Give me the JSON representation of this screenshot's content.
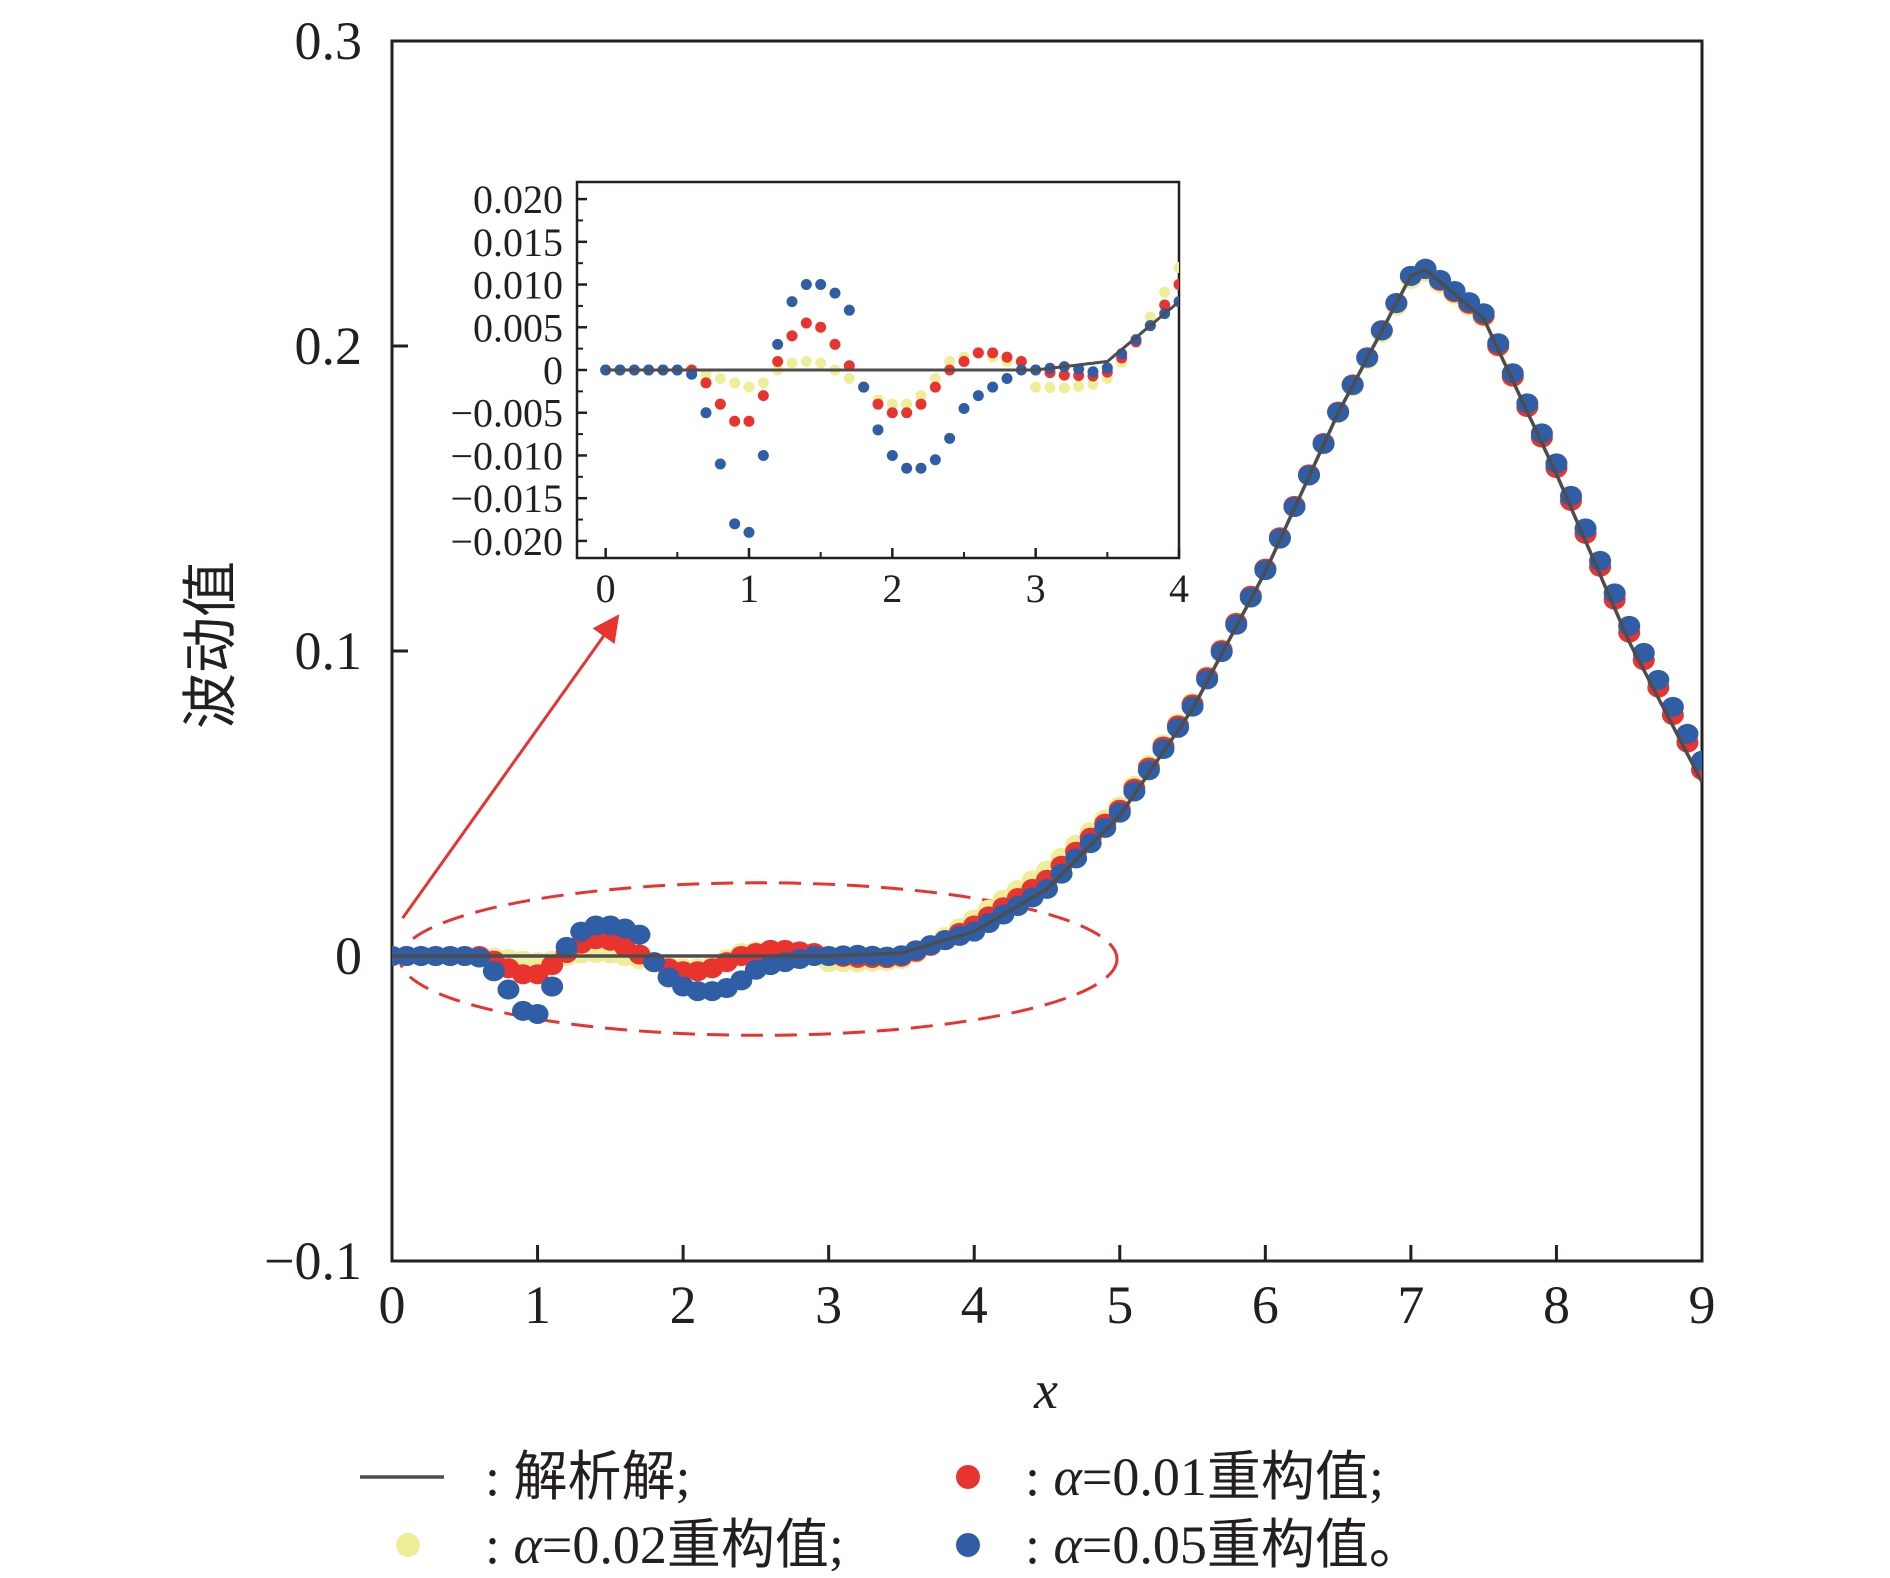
{
  "colors": {
    "analytic": "#4d4d4d",
    "alpha_001": "#e8332f",
    "alpha_002": "#eeee99",
    "alpha_005": "#2f5ea7",
    "annotation": "#e8332f",
    "axis": "#231f20"
  },
  "chart_data": [
    {
      "type": "scatter",
      "role": "main",
      "xlabel": "x",
      "ylabel": "波动值",
      "xlim": [
        0,
        9
      ],
      "ylim": [
        -0.1,
        0.3
      ],
      "x_ticks": [
        "0",
        "1",
        "2",
        "3",
        "4",
        "5",
        "6",
        "7",
        "8",
        "9"
      ],
      "y_ticks": [
        "−0.1",
        "0",
        "0.1",
        "0.2",
        "0.3"
      ],
      "grid": false,
      "legend_position": "bottom",
      "analytic_anchors": [
        [
          0,
          0
        ],
        [
          1,
          0
        ],
        [
          2,
          0
        ],
        [
          3,
          0
        ],
        [
          3.5,
          0.001
        ],
        [
          4.0,
          0.008
        ],
        [
          4.5,
          0.022
        ],
        [
          5.0,
          0.046
        ],
        [
          5.5,
          0.081
        ],
        [
          6.0,
          0.126
        ],
        [
          6.5,
          0.178
        ],
        [
          7.0,
          0.223
        ],
        [
          7.1,
          0.225
        ],
        [
          7.5,
          0.209
        ],
        [
          8.0,
          0.158
        ],
        [
          8.5,
          0.103
        ],
        [
          9.0,
          0.057
        ]
      ],
      "series": [
        {
          "name": "解析解",
          "kind": "line",
          "color_key": "analytic",
          "x": [
            0,
            9
          ],
          "sample_step": 0.1
        },
        {
          "name": "α=0.01重构值",
          "kind": "points",
          "color_key": "alpha_001",
          "x_start": 0,
          "x_end": 9,
          "x_step": 0.1,
          "deviation_from_analytic": [
            [
              0,
              0
            ],
            [
              0.6,
              0
            ],
            [
              0.7,
              -0.0015
            ],
            [
              0.8,
              -0.004
            ],
            [
              0.9,
              -0.006
            ],
            [
              1.0,
              -0.006
            ],
            [
              1.1,
              -0.003
            ],
            [
              1.2,
              0.001
            ],
            [
              1.3,
              0.004
            ],
            [
              1.4,
              0.0055
            ],
            [
              1.5,
              0.005
            ],
            [
              1.6,
              0.003
            ],
            [
              1.7,
              0.0005
            ],
            [
              1.8,
              -0.002
            ],
            [
              1.9,
              -0.004
            ],
            [
              2.0,
              -0.005
            ],
            [
              2.1,
              -0.005
            ],
            [
              2.2,
              -0.004
            ],
            [
              2.3,
              -0.002
            ],
            [
              2.4,
              0
            ],
            [
              2.5,
              0.001
            ],
            [
              2.6,
              0.002
            ],
            [
              2.7,
              0.002
            ],
            [
              2.8,
              0.0015
            ],
            [
              2.9,
              0.001
            ],
            [
              3.0,
              0
            ],
            [
              3.2,
              -0.001
            ],
            [
              3.4,
              -0.0015
            ],
            [
              3.6,
              -0.001
            ],
            [
              3.8,
              0
            ],
            [
              4.0,
              0.002
            ],
            [
              4.5,
              0.003
            ],
            [
              5.0,
              0.002
            ],
            [
              6.0,
              0.001
            ],
            [
              7.0,
              0
            ],
            [
              8.0,
              0.002
            ],
            [
              9.0,
              0.004
            ]
          ]
        },
        {
          "name": "α=0.02重构值",
          "kind": "points",
          "color_key": "alpha_002",
          "x_start": 0,
          "x_end": 9,
          "x_step": 0.1,
          "deviation_from_analytic": [
            [
              0,
              0
            ],
            [
              0.6,
              0
            ],
            [
              0.7,
              -0.0005
            ],
            [
              0.8,
              -0.001
            ],
            [
              0.9,
              -0.0015
            ],
            [
              1.0,
              -0.002
            ],
            [
              1.1,
              -0.0015
            ],
            [
              1.2,
              0
            ],
            [
              1.3,
              0.0008
            ],
            [
              1.4,
              0.001
            ],
            [
              1.5,
              0.0008
            ],
            [
              1.6,
              0
            ],
            [
              1.7,
              -0.001
            ],
            [
              1.8,
              -0.002
            ],
            [
              1.9,
              -0.0035
            ],
            [
              2.0,
              -0.004
            ],
            [
              2.1,
              -0.004
            ],
            [
              2.2,
              -0.003
            ],
            [
              2.3,
              -0.001
            ],
            [
              2.4,
              0.001
            ],
            [
              2.5,
              0.0015
            ],
            [
              2.6,
              0.002
            ],
            [
              2.7,
              0.0015
            ],
            [
              2.8,
              0.001
            ],
            [
              2.9,
              0
            ],
            [
              3.0,
              -0.002
            ],
            [
              3.2,
              -0.0025
            ],
            [
              3.4,
              -0.0025
            ],
            [
              3.6,
              -0.0015
            ],
            [
              3.8,
              0.001
            ],
            [
              4.0,
              0.004
            ],
            [
              4.5,
              0.006
            ],
            [
              5.0,
              0.003
            ],
            [
              6.0,
              0.001
            ],
            [
              7.0,
              -0.001
            ],
            [
              8.0,
              0.002
            ],
            [
              9.0,
              0.006
            ]
          ]
        },
        {
          "name": "α=0.05重构值",
          "kind": "points",
          "color_key": "alpha_005",
          "x_start": 0,
          "x_end": 9,
          "x_step": 0.1,
          "deviation_from_analytic": [
            [
              0,
              0
            ],
            [
              0.5,
              0
            ],
            [
              0.6,
              -0.0005
            ],
            [
              0.7,
              -0.005
            ],
            [
              0.8,
              -0.011
            ],
            [
              0.9,
              -0.018
            ],
            [
              1.0,
              -0.019
            ],
            [
              1.1,
              -0.01
            ],
            [
              1.2,
              0.003
            ],
            [
              1.3,
              0.008
            ],
            [
              1.4,
              0.01
            ],
            [
              1.5,
              0.01
            ],
            [
              1.6,
              0.009
            ],
            [
              1.7,
              0.007
            ],
            [
              1.8,
              -0.002
            ],
            [
              1.9,
              -0.007
            ],
            [
              2.0,
              -0.01
            ],
            [
              2.1,
              -0.0115
            ],
            [
              2.2,
              -0.0115
            ],
            [
              2.3,
              -0.0105
            ],
            [
              2.4,
              -0.008
            ],
            [
              2.5,
              -0.0045
            ],
            [
              2.6,
              -0.003
            ],
            [
              2.7,
              -0.002
            ],
            [
              2.8,
              -0.001
            ],
            [
              2.9,
              0
            ],
            [
              3.0,
              0
            ],
            [
              3.2,
              0
            ],
            [
              3.4,
              -0.001
            ],
            [
              3.6,
              -0.0005
            ],
            [
              3.8,
              0
            ],
            [
              4.0,
              0
            ],
            [
              4.5,
              0
            ],
            [
              5.0,
              0.001
            ],
            [
              7.0,
              0
            ],
            [
              9.0,
              0.007
            ]
          ]
        }
      ],
      "annotations": [
        {
          "type": "dashed-ellipse",
          "x_range": [
            0,
            4.5
          ],
          "y_range": [
            -0.026,
            0.024
          ]
        },
        {
          "type": "arrow",
          "from": [
            0.1,
            0.015
          ],
          "to": [
            2.1,
            0.112
          ]
        }
      ]
    },
    {
      "type": "scatter",
      "role": "inset",
      "xlim": [
        -0.2,
        4
      ],
      "ylim": [
        -0.022,
        0.022
      ],
      "x_ticks": [
        "0",
        "1",
        "2",
        "3",
        "4"
      ],
      "y_ticks": [
        "0.020",
        "0.015",
        "0.010",
        "0.005",
        "0",
        "−0.005",
        "−0.010",
        "−0.015",
        "−0.020"
      ],
      "x_range_shown": [
        0,
        4
      ],
      "grid": false
    }
  ],
  "legend": [
    {
      "marker": "line",
      "color_key": "analytic",
      "sep": ": ",
      "label": "解析解;",
      "italic_prefix": ""
    },
    {
      "marker": "dot",
      "color_key": "alpha_001",
      "sep": ": ",
      "italic_prefix": "α",
      "label": "=0.01重构值;"
    },
    {
      "marker": "dot",
      "color_key": "alpha_002",
      "sep": ": ",
      "italic_prefix": "α",
      "label": "=0.02重构值;"
    },
    {
      "marker": "dot",
      "color_key": "alpha_005",
      "sep": ": ",
      "italic_prefix": "α",
      "label": "=0.05重构值。"
    }
  ]
}
